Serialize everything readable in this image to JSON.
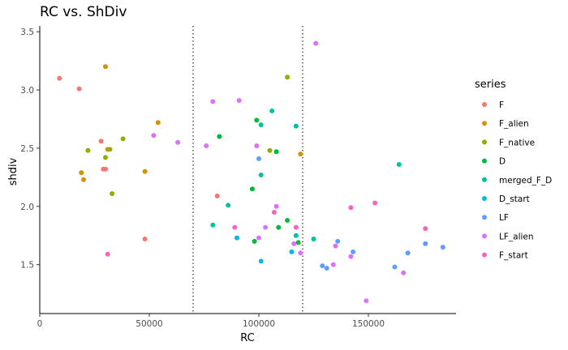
{
  "chart_data": {
    "type": "scatter",
    "title": "RC vs. ShDiv",
    "xlabel": "RC",
    "ylabel": "shdiv",
    "xlim": [
      0,
      190000
    ],
    "ylim": [
      1.08,
      3.55
    ],
    "x_ticks": [
      0,
      50000,
      100000,
      150000
    ],
    "x_tick_labels": [
      "0",
      "50000",
      "100000",
      "150000"
    ],
    "y_ticks": [
      1.5,
      2.0,
      2.5,
      3.0,
      3.5
    ],
    "y_tick_labels": [
      "1.5",
      "2.0",
      "2.5",
      "3.0",
      "3.5"
    ],
    "grid": false,
    "vlines": [
      70000,
      120000
    ],
    "legend": {
      "title": "series",
      "position": "right"
    },
    "series": [
      {
        "name": "F",
        "color": "#F8766D",
        "points": [
          [
            9000,
            3.1
          ],
          [
            18000,
            3.01
          ],
          [
            28000,
            2.56
          ],
          [
            29000,
            2.32
          ],
          [
            30000,
            2.32
          ],
          [
            48000,
            1.72
          ],
          [
            81000,
            2.09
          ]
        ]
      },
      {
        "name": "F_alien",
        "color": "#D39200",
        "points": [
          [
            30000,
            3.2
          ],
          [
            19000,
            2.29
          ],
          [
            20000,
            2.23
          ],
          [
            31000,
            2.49
          ],
          [
            48000,
            2.3
          ],
          [
            54000,
            2.72
          ],
          [
            119000,
            2.45
          ]
        ]
      },
      {
        "name": "F_native",
        "color": "#93AA00",
        "points": [
          [
            22000,
            2.48
          ],
          [
            30000,
            2.42
          ],
          [
            32000,
            2.49
          ],
          [
            33000,
            2.11
          ],
          [
            38000,
            2.58
          ],
          [
            105000,
            2.48
          ],
          [
            113000,
            3.11
          ]
        ]
      },
      {
        "name": "D",
        "color": "#00BA38",
        "points": [
          [
            82000,
            2.6
          ],
          [
            97000,
            2.15
          ],
          [
            99000,
            2.74
          ],
          [
            98000,
            1.7
          ],
          [
            108000,
            2.47
          ],
          [
            109000,
            1.82
          ],
          [
            113000,
            1.88
          ],
          [
            118000,
            1.69
          ]
        ]
      },
      {
        "name": "merged_F_D",
        "color": "#00C19F",
        "points": [
          [
            79000,
            1.84
          ],
          [
            86000,
            2.01
          ],
          [
            101000,
            2.27
          ],
          [
            101000,
            2.7
          ],
          [
            106000,
            2.82
          ],
          [
            117000,
            2.69
          ],
          [
            117000,
            1.75
          ],
          [
            125000,
            1.72
          ],
          [
            164000,
            2.36
          ]
        ]
      },
      {
        "name": "D_start",
        "color": "#00B9E3",
        "points": [
          [
            90000,
            1.73
          ],
          [
            101000,
            1.53
          ],
          [
            115000,
            1.61
          ]
        ]
      },
      {
        "name": "LF",
        "color": "#619CFF",
        "points": [
          [
            100000,
            2.41
          ],
          [
            129000,
            1.49
          ],
          [
            131000,
            1.47
          ],
          [
            136000,
            1.7
          ],
          [
            143000,
            1.61
          ],
          [
            162000,
            1.48
          ],
          [
            168000,
            1.6
          ],
          [
            176000,
            1.68
          ],
          [
            184000,
            1.65
          ]
        ]
      },
      {
        "name": "LF_alien",
        "color": "#DB72FB",
        "points": [
          [
            126000,
            3.4
          ],
          [
            79000,
            2.9
          ],
          [
            91000,
            2.91
          ],
          [
            76000,
            2.52
          ],
          [
            63000,
            2.55
          ],
          [
            52000,
            2.61
          ],
          [
            99000,
            2.52
          ],
          [
            100000,
            1.73
          ],
          [
            103000,
            1.82
          ],
          [
            108000,
            2.0
          ],
          [
            116000,
            1.68
          ],
          [
            119000,
            1.6
          ],
          [
            134000,
            1.5
          ],
          [
            135000,
            1.66
          ],
          [
            142000,
            1.57
          ],
          [
            149000,
            1.19
          ],
          [
            166000,
            1.43
          ]
        ]
      },
      {
        "name": "F_start",
        "color": "#FF61C3",
        "points": [
          [
            31000,
            1.59
          ],
          [
            89000,
            1.82
          ],
          [
            107000,
            1.95
          ],
          [
            117000,
            1.82
          ],
          [
            142000,
            1.99
          ],
          [
            153000,
            2.03
          ],
          [
            176000,
            1.81
          ]
        ]
      }
    ]
  }
}
